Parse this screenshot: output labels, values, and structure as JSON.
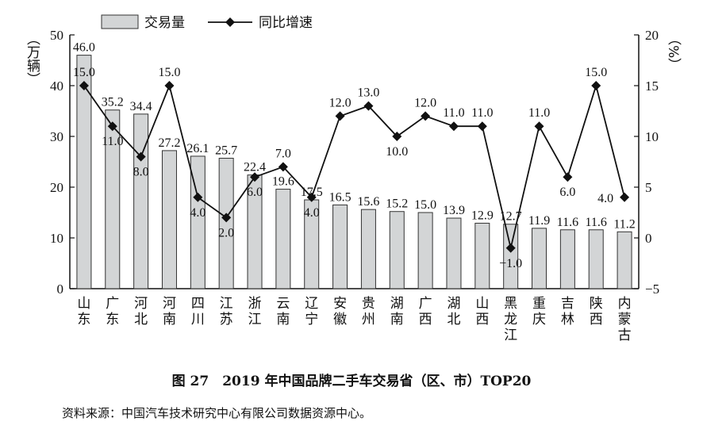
{
  "chart_data": {
    "type": "bar+line",
    "categories": [
      "山东",
      "广东",
      "河北",
      "河南",
      "四川",
      "江苏",
      "浙江",
      "云南",
      "辽宁",
      "安徽",
      "贵州",
      "湖南",
      "广西",
      "湖北",
      "山西",
      "黑龙江",
      "重庆",
      "吉林",
      "陕西",
      "内蒙古"
    ],
    "series": [
      {
        "name": "交易量",
        "type": "bar",
        "axis": "left",
        "color": "#d3d5d6",
        "values": [
          46.0,
          35.2,
          34.4,
          27.2,
          26.1,
          25.7,
          22.4,
          19.6,
          17.5,
          16.5,
          15.6,
          15.2,
          15.0,
          13.9,
          12.9,
          12.7,
          11.9,
          11.6,
          11.6,
          11.2
        ]
      },
      {
        "name": "同比增速",
        "type": "line",
        "axis": "right",
        "color": "#111111",
        "marker": "diamond",
        "values": [
          15.0,
          11.0,
          8.0,
          15.0,
          4.0,
          2.0,
          6.0,
          7.0,
          4.0,
          12.0,
          13.0,
          10.0,
          12.0,
          11.0,
          11.0,
          -1.0,
          11.0,
          6.0,
          15.0,
          4.0
        ]
      }
    ],
    "ylabel_left": "（万辆）",
    "ylabel_right": "（%）",
    "ylim_left": [
      0,
      50
    ],
    "yticks_left": [
      0,
      10,
      20,
      30,
      40,
      50
    ],
    "ylim_right": [
      -5,
      20
    ],
    "yticks_right": [
      -5,
      0,
      5,
      10,
      15,
      20
    ],
    "legend_position": "top-left",
    "grid": false
  },
  "caption": "图 27　2019 年中国品牌二手车交易省（区、市）TOP20",
  "source": "资料来源：中国汽车技术研究中心有限公司数据资源中心。"
}
